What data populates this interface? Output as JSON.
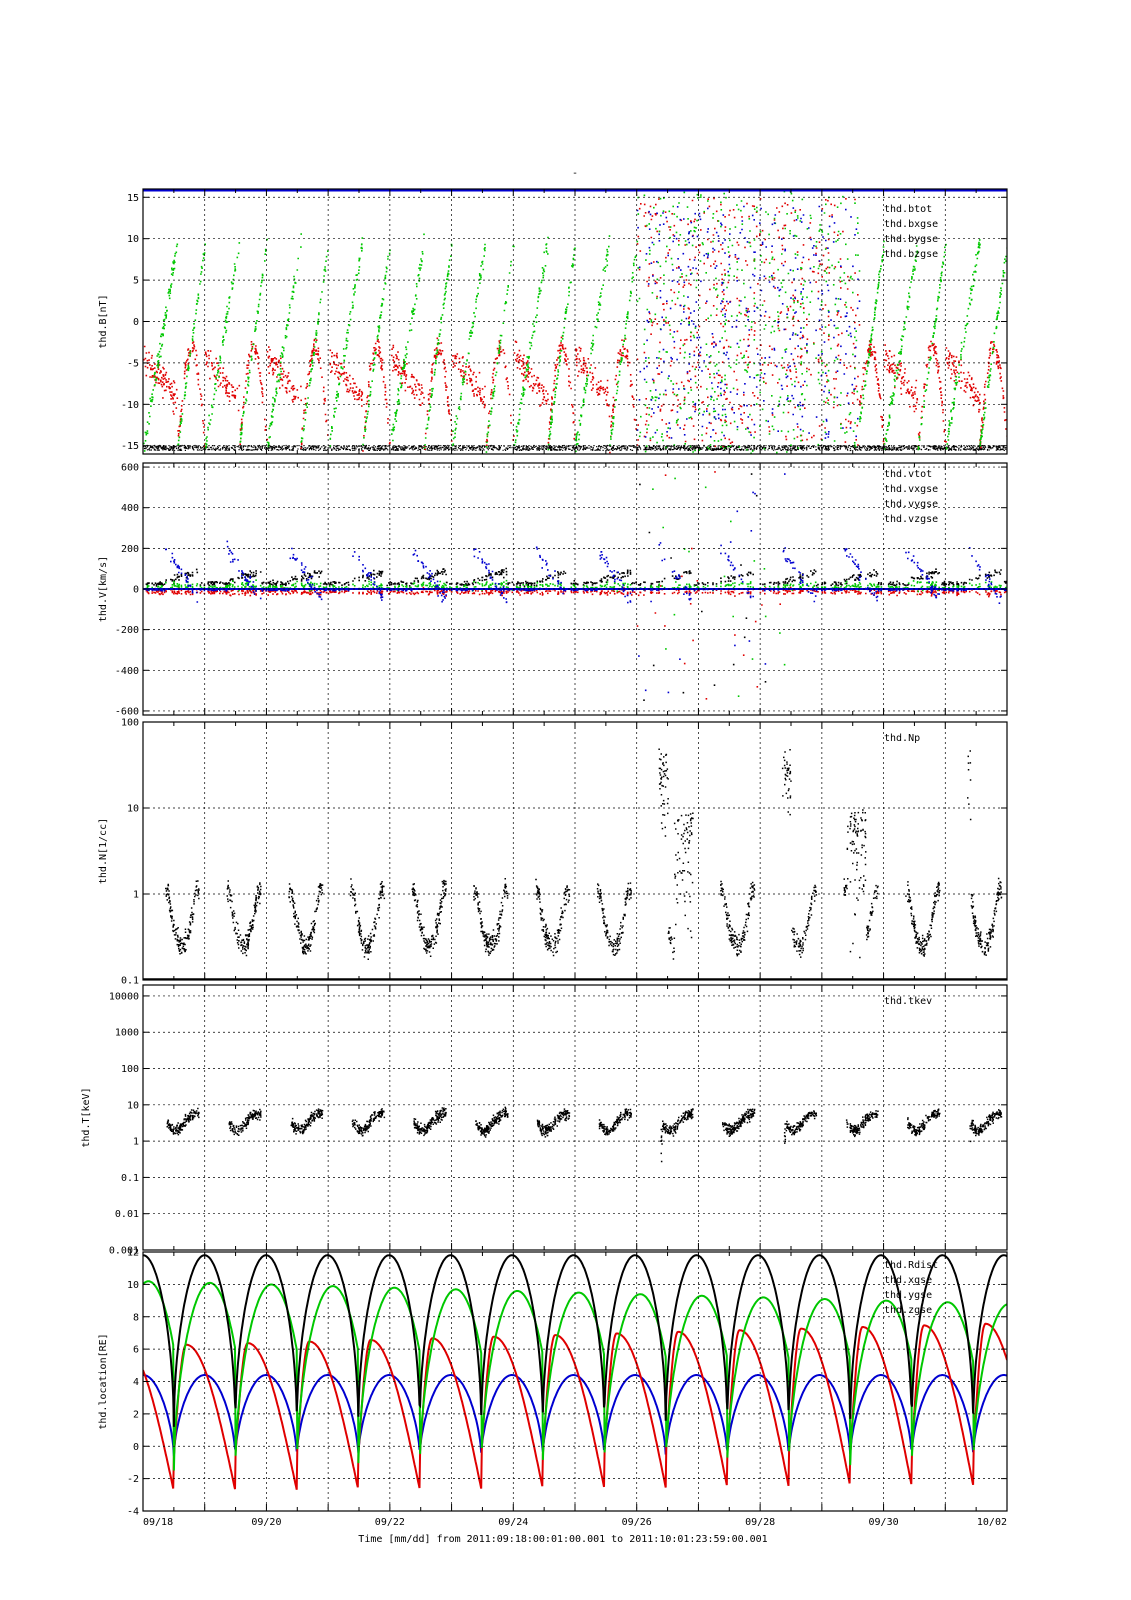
{
  "figure": {
    "top_label": "-",
    "footer": "Time [mm/dd]  from 2011:09:18:00:01:00.001  to  2011:10:01:23:59:00.001"
  },
  "x_axis": {
    "range_days": [
      0,
      14
    ],
    "ticks": [
      {
        "day": 0,
        "label": "09/18"
      },
      {
        "day": 2,
        "label": "09/20"
      },
      {
        "day": 4,
        "label": "09/22"
      },
      {
        "day": 6,
        "label": "09/24"
      },
      {
        "day": 8,
        "label": "09/26"
      },
      {
        "day": 10,
        "label": "09/28"
      },
      {
        "day": 12,
        "label": "09/30"
      },
      {
        "day": 14,
        "label": "10/02"
      }
    ]
  },
  "chart_data": [
    {
      "type": "scatter",
      "ylabel": "thd.B[nT]",
      "ylim": [
        -16,
        16
      ],
      "log": false,
      "yticks": [
        -15,
        -10,
        -5,
        0,
        5,
        10,
        15
      ],
      "grid": true,
      "legend_placement": "top-right",
      "series": [
        {
          "name": "thd.btot",
          "color": "#000000"
        },
        {
          "name": "thd.bxgse",
          "color": "#e00000"
        },
        {
          "name": "thd.bygse",
          "color": "#00c800"
        },
        {
          "name": "thd.bzgse",
          "color": "#0000d0"
        }
      ]
    },
    {
      "type": "scatter",
      "ylabel": "thd.V[km/s]",
      "ylim": [
        -620,
        620
      ],
      "log": false,
      "yticks": [
        -600,
        -400,
        -200,
        0,
        200,
        400,
        600
      ],
      "grid": true,
      "legend_placement": "top-right",
      "series": [
        {
          "name": "thd.vtot",
          "color": "#000000"
        },
        {
          "name": "thd.vxgse",
          "color": "#e00000"
        },
        {
          "name": "thd.vygse",
          "color": "#00c800"
        },
        {
          "name": "thd.vzgse",
          "color": "#0000d0"
        }
      ]
    },
    {
      "type": "scatter",
      "ylabel": "thd.N[1/cc]",
      "ylim": [
        0.1,
        100
      ],
      "log": true,
      "yticks": [
        0.1,
        1,
        10,
        100
      ],
      "grid": true,
      "legend_placement": "top-right",
      "series": [
        {
          "name": "thd.Np",
          "color": "#000000"
        }
      ]
    },
    {
      "type": "scatter",
      "ylabel": "thd.T[keV]",
      "ylim": [
        0.001,
        20000
      ],
      "log": true,
      "yticks": [
        0.001,
        0.01,
        0.1,
        1,
        10,
        100,
        1000,
        10000
      ],
      "grid": true,
      "legend_placement": "top-right",
      "series": [
        {
          "name": "thd.tkev",
          "color": "#000000"
        }
      ]
    },
    {
      "type": "line",
      "ylabel": "thd.location[RE]",
      "ylim": [
        -4,
        12
      ],
      "log": false,
      "yticks": [
        -4,
        -2,
        0,
        2,
        4,
        6,
        8,
        10,
        12
      ],
      "grid": true,
      "legend_placement": "top-right",
      "orbit_period_days": 0.9963,
      "series": [
        {
          "name": "thd.Rdist",
          "color": "#000000",
          "apogee": 11.8,
          "perigee": 1.2
        },
        {
          "name": "thd.xgse",
          "color": "#00c800",
          "max_start": 10.2,
          "max_end": 8.8,
          "min": -1.5
        },
        {
          "name": "thd.ygse",
          "color": "#0000d0",
          "max": 4.4,
          "min": -0.6
        },
        {
          "name": "thd.zgse",
          "color": "#e00000",
          "max_start": 6.2,
          "max_end": 7.6,
          "min_start": -2.8,
          "min_end": -2.4
        }
      ]
    }
  ]
}
